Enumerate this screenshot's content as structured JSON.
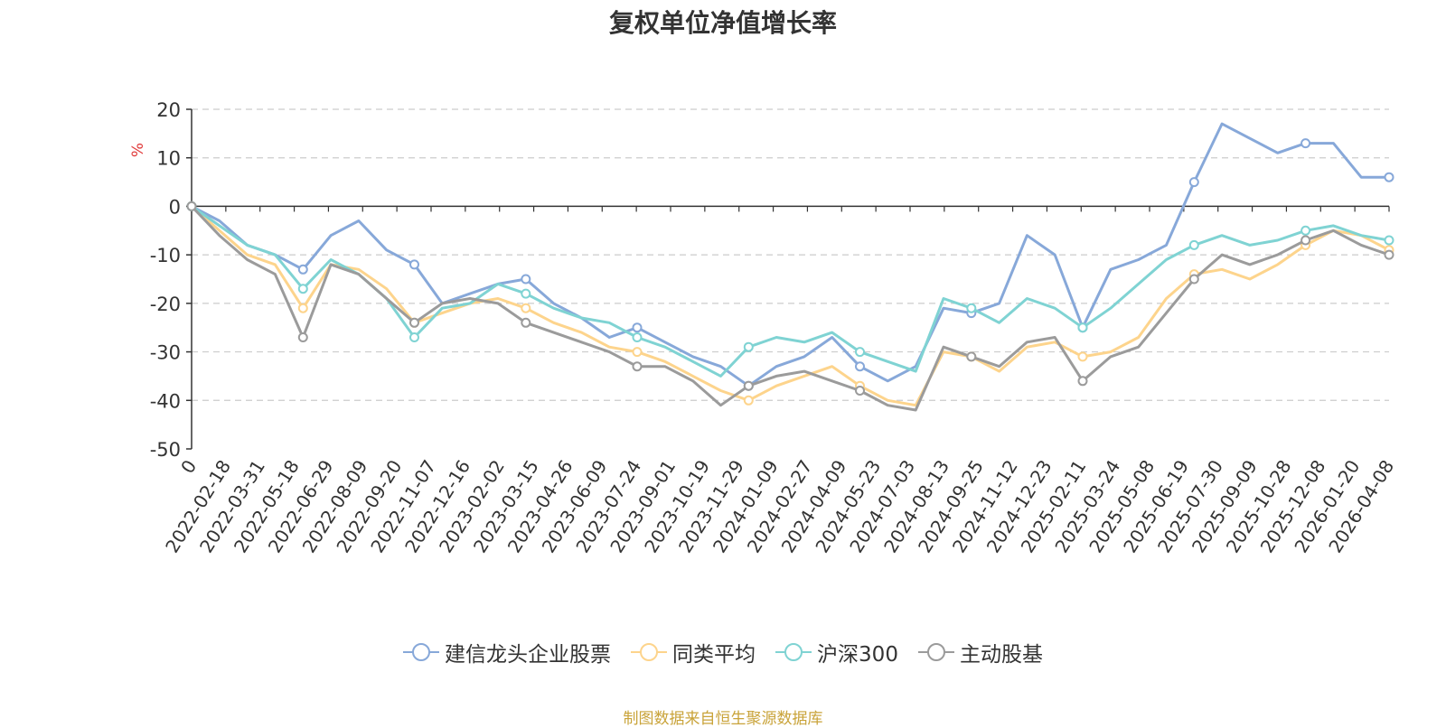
{
  "chart_data": {
    "type": "line",
    "title": "复权单位净值增长率",
    "ylabel": "%",
    "ylim": [
      -50,
      20
    ],
    "yticks": [
      20,
      10,
      0,
      -10,
      -20,
      -30,
      -40,
      -50
    ],
    "grid": true,
    "legend_position": "bottom-center",
    "x_labels": [
      "0",
      "2022-02-18",
      "2022-03-31",
      "2022-05-18",
      "2022-06-29",
      "2022-08-09",
      "2022-09-20",
      "2022-11-07",
      "2022-12-16",
      "2023-02-02",
      "2023-03-15",
      "2023-04-26",
      "2023-06-09",
      "2023-07-24",
      "2023-09-01",
      "2023-10-19",
      "2023-11-29",
      "2024-01-09",
      "2024-02-27",
      "2024-04-09",
      "2024-05-23",
      "2024-07-03",
      "2024-08-13",
      "2024-09-25",
      "2024-11-12",
      "2024-12-23",
      "2025-02-11",
      "2025-03-24",
      "2025-05-08",
      "2025-06-19",
      "2025-07-30",
      "2025-09-09",
      "2025-10-28",
      "2025-12-08",
      "2026-01-20",
      "2026-04-08"
    ],
    "series": [
      {
        "name": "建信龙头企业股票",
        "color": "#87a8d9",
        "values": [
          0,
          -3,
          -8,
          -10,
          -13,
          -6,
          -3,
          -9,
          -12,
          -20,
          -18,
          -16,
          -15,
          -20,
          -23,
          -27,
          -25,
          -28,
          -31,
          -33,
          -37,
          -33,
          -31,
          -27,
          -33,
          -36,
          -33,
          -21,
          -22,
          -20,
          -6,
          -10,
          -25,
          -13,
          -11,
          -8,
          5,
          17,
          14,
          11,
          13,
          13,
          6,
          6
        ]
      },
      {
        "name": "同类平均",
        "color": "#fdd48c",
        "values": [
          0,
          -5,
          -10,
          -12,
          -21,
          -12,
          -13,
          -17,
          -24,
          -22,
          -20,
          -19,
          -21,
          -24,
          -26,
          -29,
          -30,
          -32,
          -35,
          -38,
          -40,
          -37,
          -35,
          -33,
          -37,
          -40,
          -41,
          -30,
          -31,
          -34,
          -29,
          -28,
          -31,
          -30,
          -27,
          -19,
          -14,
          -13,
          -15,
          -12,
          -8,
          -5,
          -6,
          -9
        ]
      },
      {
        "name": "沪深300",
        "color": "#7fd3d3",
        "values": [
          0,
          -4,
          -8,
          -10,
          -17,
          -11,
          -14,
          -19,
          -27,
          -21,
          -20,
          -16,
          -18,
          -21,
          -23,
          -24,
          -27,
          -29,
          -32,
          -35,
          -29,
          -27,
          -28,
          -26,
          -30,
          -32,
          -34,
          -19,
          -21,
          -24,
          -19,
          -21,
          -25,
          -21,
          -16,
          -11,
          -8,
          -6,
          -8,
          -7,
          -5,
          -4,
          -6,
          -7
        ]
      },
      {
        "name": "主动股基",
        "color": "#9b9b9b",
        "values": [
          0,
          -6,
          -11,
          -14,
          -27,
          -12,
          -14,
          -19,
          -24,
          -20,
          -19,
          -20,
          -24,
          -26,
          -28,
          -30,
          -33,
          -33,
          -36,
          -41,
          -37,
          -35,
          -34,
          -36,
          -38,
          -41,
          -42,
          -29,
          -31,
          -33,
          -28,
          -27,
          -36,
          -31,
          -29,
          -22,
          -15,
          -10,
          -12,
          -10,
          -7,
          -5,
          -8,
          -10
        ]
      }
    ]
  },
  "legend_items": [
    "建信龙头企业股票",
    "同类平均",
    "沪深300",
    "主动股基"
  ],
  "source_note": "制图数据来自恒生聚源数据库"
}
